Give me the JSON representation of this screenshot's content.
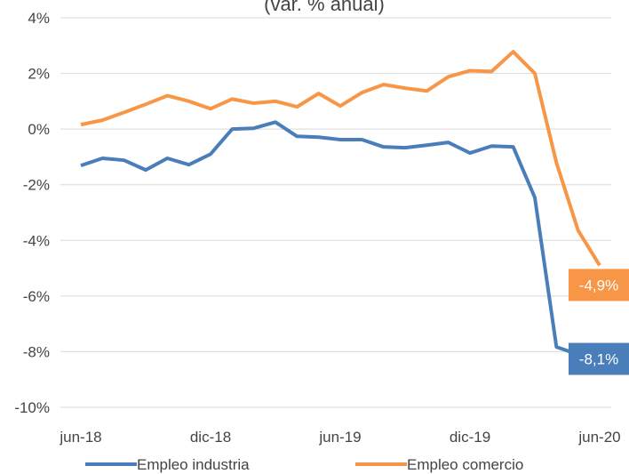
{
  "chart_data": {
    "type": "line",
    "subtitle": "(var. % anual)",
    "categories": [
      "jun-18",
      null,
      null,
      null,
      null,
      null,
      "dic-18",
      null,
      null,
      null,
      null,
      null,
      "jun-19",
      null,
      null,
      null,
      null,
      null,
      "dic-19",
      null,
      null,
      null,
      null,
      null,
      "jun-20"
    ],
    "series": [
      {
        "name": "Empleo industria",
        "color": "#4a7ebb",
        "values": [
          -1.31,
          -1.05,
          -1.12,
          -1.47,
          -1.05,
          -1.28,
          -0.9,
          0.0,
          0.03,
          0.25,
          -0.26,
          -0.29,
          -0.38,
          -0.38,
          -0.64,
          -0.67,
          -0.58,
          -0.48,
          -0.86,
          -0.61,
          -0.64,
          -2.46,
          -7.83,
          -8.1,
          null
        ],
        "value_labels": [
          null,
          null,
          null,
          null,
          null,
          null,
          null,
          null,
          null,
          null,
          null,
          null,
          null,
          null,
          null,
          null,
          null,
          null,
          null,
          null,
          null,
          null,
          null,
          "-8,1%",
          null
        ]
      },
      {
        "name": "Empleo comercio",
        "color": "#f79646",
        "values": [
          0.16,
          0.32,
          0.6,
          0.89,
          1.2,
          1.0,
          0.73,
          1.08,
          0.93,
          1.0,
          0.8,
          1.28,
          0.83,
          1.31,
          1.6,
          1.47,
          1.37,
          1.88,
          2.1,
          2.07,
          2.78,
          2.0,
          -1.21,
          -3.64,
          -4.9
        ],
        "value_labels": [
          null,
          null,
          null,
          null,
          null,
          null,
          null,
          null,
          null,
          null,
          null,
          null,
          null,
          null,
          null,
          null,
          null,
          null,
          null,
          null,
          null,
          null,
          null,
          null,
          "-4,9%"
        ]
      }
    ],
    "ylim": [
      -10,
      4
    ],
    "yticks": [
      {
        "value": -10,
        "label": "-10%"
      },
      {
        "value": -8,
        "label": "-8%"
      },
      {
        "value": -6,
        "label": "-6%"
      },
      {
        "value": -4,
        "label": "-4%"
      },
      {
        "value": -2,
        "label": "-2%"
      },
      {
        "value": 0,
        "label": "0%"
      },
      {
        "value": 2,
        "label": "2%"
      },
      {
        "value": 4,
        "label": "4%"
      }
    ],
    "grid": true,
    "legend": "bottom"
  }
}
